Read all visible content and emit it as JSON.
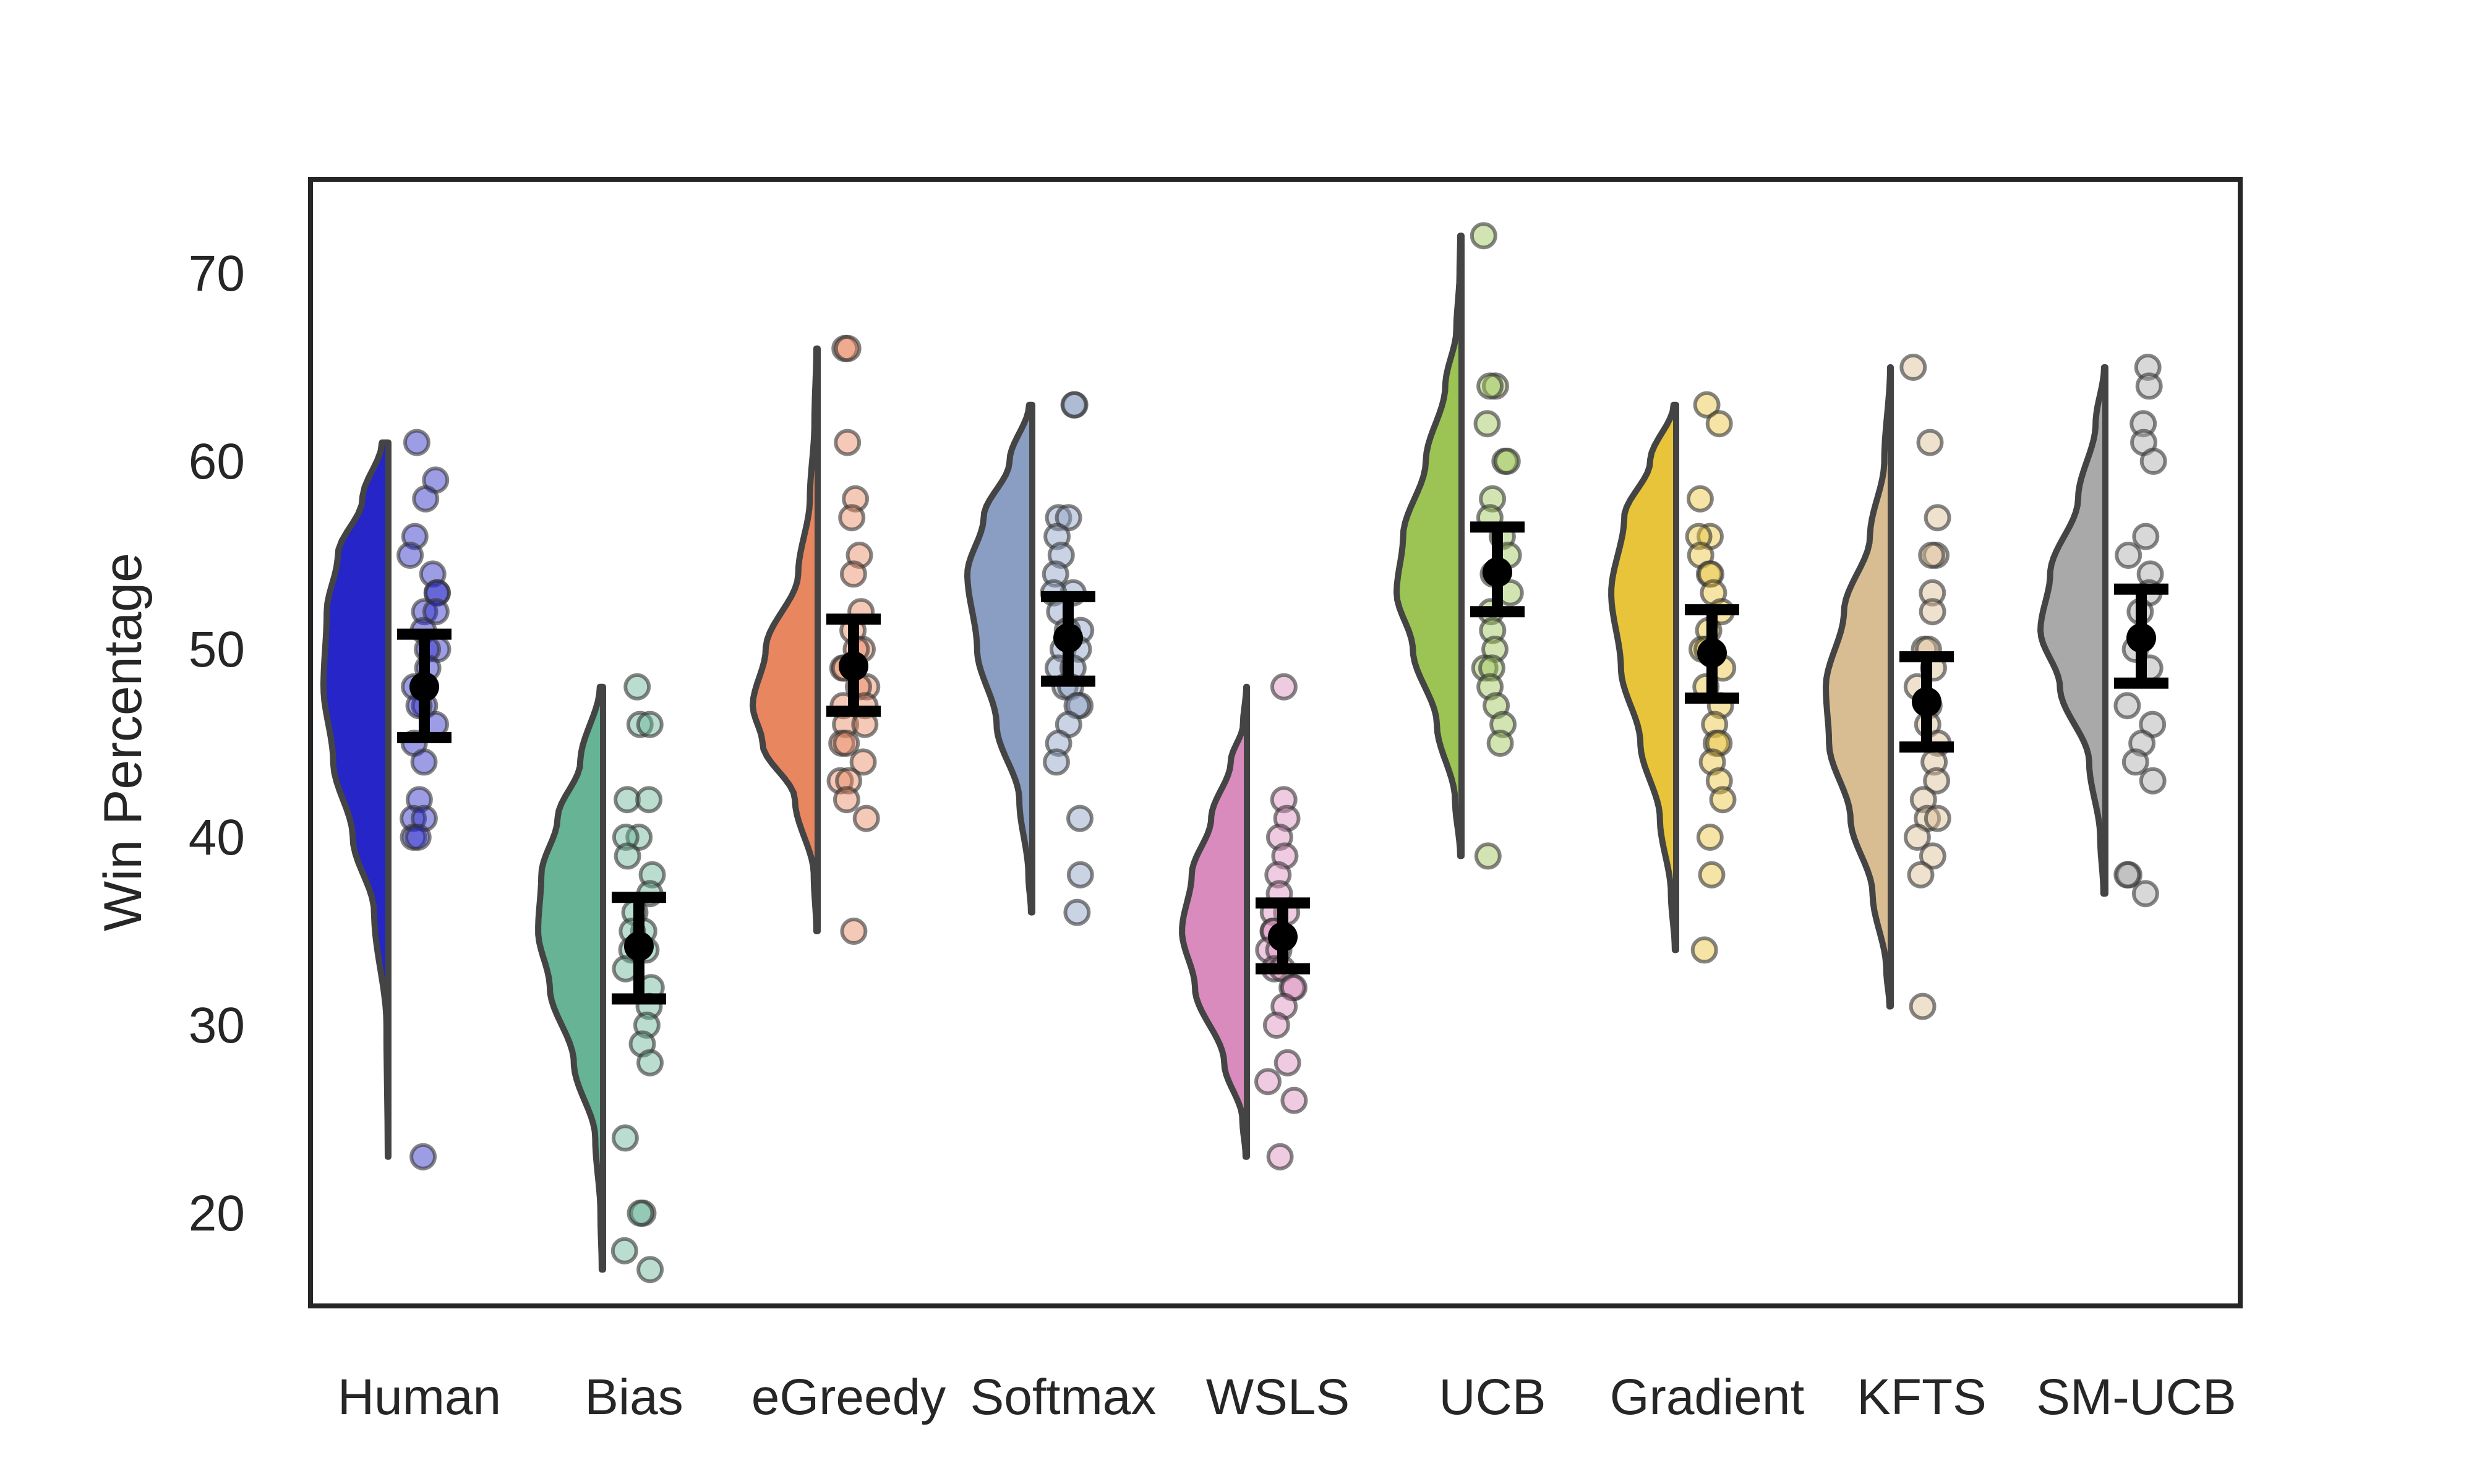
{
  "chart_data": {
    "type": "raincloud",
    "title": "",
    "xlabel": "",
    "ylabel": "Win Percentage",
    "ylim": [
      15,
      75
    ],
    "yticks": [
      20,
      30,
      40,
      50,
      60,
      70
    ],
    "grid": false,
    "legend": "none",
    "categories": [
      "Human",
      "Bias",
      "eGreedy",
      "Softmax",
      "WSLS",
      "UCB",
      "Gradient",
      "KFTS",
      "SM-UCB"
    ],
    "series": [
      {
        "category": "Human",
        "color": "#2525c8",
        "mean": 48.0,
        "ci": [
          45.3,
          50.8
        ],
        "range": [
          23,
          61
        ],
        "density": [
          [
            23,
            0.01
          ],
          [
            30,
            0.03
          ],
          [
            36,
            0.22
          ],
          [
            40,
            0.55
          ],
          [
            44,
            0.85
          ],
          [
            48,
            1.0
          ],
          [
            52,
            0.95
          ],
          [
            55,
            0.78
          ],
          [
            58,
            0.4
          ],
          [
            61,
            0.1
          ]
        ],
        "points": [
          61,
          59,
          58,
          56,
          55,
          54,
          53,
          53,
          52,
          52,
          51,
          50,
          50,
          49,
          48,
          47,
          47,
          46,
          45,
          44,
          42,
          41,
          41,
          40,
          40,
          23
        ]
      },
      {
        "category": "Bias",
        "color": "#66b395",
        "mean": 34.2,
        "ci": [
          31.4,
          36.8
        ],
        "range": [
          17,
          48
        ],
        "density": [
          [
            17,
            0.02
          ],
          [
            20,
            0.04
          ],
          [
            24,
            0.12
          ],
          [
            28,
            0.45
          ],
          [
            32,
            0.82
          ],
          [
            35,
            1.0
          ],
          [
            38,
            0.95
          ],
          [
            41,
            0.7
          ],
          [
            44,
            0.35
          ],
          [
            48,
            0.05
          ]
        ],
        "points": [
          48,
          46,
          46,
          42,
          42,
          40,
          40,
          39,
          38,
          37,
          36,
          35,
          35,
          34,
          34,
          33,
          32,
          31,
          30,
          29,
          28,
          24,
          20,
          20,
          18,
          17
        ]
      },
      {
        "category": "eGreedy",
        "color": "#e8875f",
        "mean": 49.1,
        "ci": [
          46.7,
          51.6
        ],
        "range": [
          35,
          66
        ],
        "density": [
          [
            35,
            0.02
          ],
          [
            38,
            0.06
          ],
          [
            42,
            0.35
          ],
          [
            45,
            0.85
          ],
          [
            47,
            1.0
          ],
          [
            50,
            0.8
          ],
          [
            54,
            0.3
          ],
          [
            58,
            0.12
          ],
          [
            62,
            0.05
          ],
          [
            66,
            0.02
          ]
        ],
        "points": [
          66,
          66,
          61,
          58,
          57,
          55,
          54,
          52,
          51,
          50,
          50,
          49,
          49,
          48,
          48,
          47,
          47,
          46,
          46,
          45,
          45,
          44,
          43,
          43,
          42,
          41,
          35
        ]
      },
      {
        "category": "Softmax",
        "color": "#8a9dc2",
        "mean": 50.6,
        "ci": [
          48.3,
          52.8
        ],
        "range": [
          36,
          63
        ],
        "density": [
          [
            36,
            0.02
          ],
          [
            38,
            0.06
          ],
          [
            42,
            0.2
          ],
          [
            46,
            0.55
          ],
          [
            50,
            0.85
          ],
          [
            54,
            1.0
          ],
          [
            57,
            0.75
          ],
          [
            60,
            0.35
          ],
          [
            63,
            0.05
          ]
        ],
        "points": [
          63,
          63,
          57,
          57,
          56,
          55,
          54,
          53,
          53,
          52,
          51,
          51,
          50,
          50,
          49,
          49,
          48,
          48,
          47,
          47,
          46,
          45,
          44,
          41,
          38,
          36
        ]
      },
      {
        "category": "WSLS",
        "color": "#d98bbd",
        "mean": 34.7,
        "ci": [
          33.0,
          36.5
        ],
        "range": [
          23,
          48
        ],
        "density": [
          [
            23,
            0.02
          ],
          [
            25,
            0.07
          ],
          [
            28,
            0.35
          ],
          [
            32,
            0.8
          ],
          [
            35,
            1.0
          ],
          [
            38,
            0.85
          ],
          [
            41,
            0.55
          ],
          [
            44,
            0.25
          ],
          [
            46,
            0.06
          ],
          [
            48,
            0.01
          ]
        ],
        "points": [
          48,
          42,
          41,
          40,
          39,
          38,
          37,
          36,
          36,
          35,
          35,
          34,
          34,
          33,
          33,
          32,
          32,
          31,
          30,
          28,
          27,
          26,
          23
        ]
      },
      {
        "category": "UCB",
        "color": "#9bc455",
        "mean": 54.1,
        "ci": [
          52.0,
          56.5
        ],
        "range": [
          39,
          72
        ],
        "density": [
          [
            39,
            0.02
          ],
          [
            42,
            0.1
          ],
          [
            46,
            0.38
          ],
          [
            50,
            0.75
          ],
          [
            53,
            1.0
          ],
          [
            56,
            0.9
          ],
          [
            60,
            0.55
          ],
          [
            64,
            0.25
          ],
          [
            67,
            0.08
          ],
          [
            70,
            0.03
          ],
          [
            72,
            0.02
          ]
        ],
        "points": [
          72,
          64,
          64,
          62,
          60,
          60,
          58,
          57,
          56,
          55,
          54,
          53,
          52,
          51,
          50,
          49,
          49,
          48,
          47,
          46,
          45,
          39
        ]
      },
      {
        "category": "Gradient",
        "color": "#e8c43a",
        "mean": 49.8,
        "ci": [
          47.4,
          52.1
        ],
        "range": [
          34,
          63
        ],
        "density": [
          [
            34,
            0.02
          ],
          [
            37,
            0.08
          ],
          [
            41,
            0.25
          ],
          [
            45,
            0.55
          ],
          [
            49,
            0.85
          ],
          [
            53,
            1.0
          ],
          [
            57,
            0.8
          ],
          [
            60,
            0.4
          ],
          [
            63,
            0.04
          ]
        ],
        "points": [
          63,
          62,
          58,
          56,
          56,
          55,
          54,
          54,
          53,
          52,
          51,
          50,
          50,
          49,
          48,
          47,
          46,
          45,
          45,
          44,
          43,
          42,
          40,
          38,
          34
        ]
      },
      {
        "category": "KFTS",
        "color": "#d9bd92",
        "mean": 47.2,
        "ci": [
          44.8,
          49.6
        ],
        "range": [
          31,
          65
        ],
        "density": [
          [
            31,
            0.02
          ],
          [
            33,
            0.07
          ],
          [
            37,
            0.28
          ],
          [
            41,
            0.62
          ],
          [
            45,
            0.95
          ],
          [
            48,
            1.0
          ],
          [
            52,
            0.72
          ],
          [
            56,
            0.32
          ],
          [
            60,
            0.1
          ],
          [
            65,
            0.01
          ]
        ],
        "points": [
          65,
          61,
          57,
          55,
          55,
          53,
          52,
          50,
          50,
          49,
          48,
          47,
          46,
          45,
          44,
          43,
          42,
          41,
          41,
          40,
          39,
          38,
          31
        ]
      },
      {
        "category": "SM-UCB",
        "color": "#a9a9a9",
        "mean": 50.6,
        "ci": [
          48.2,
          53.2
        ],
        "range": [
          37,
          65
        ],
        "density": [
          [
            37,
            0.03
          ],
          [
            40,
            0.08
          ],
          [
            44,
            0.25
          ],
          [
            48,
            0.7
          ],
          [
            51,
            1.0
          ],
          [
            54,
            0.85
          ],
          [
            58,
            0.42
          ],
          [
            62,
            0.15
          ],
          [
            65,
            0.02
          ]
        ],
        "points": [
          65,
          64,
          62,
          61,
          60,
          56,
          55,
          54,
          53,
          52,
          50,
          49,
          47,
          46,
          45,
          44,
          43,
          38,
          38,
          37
        ]
      }
    ]
  }
}
